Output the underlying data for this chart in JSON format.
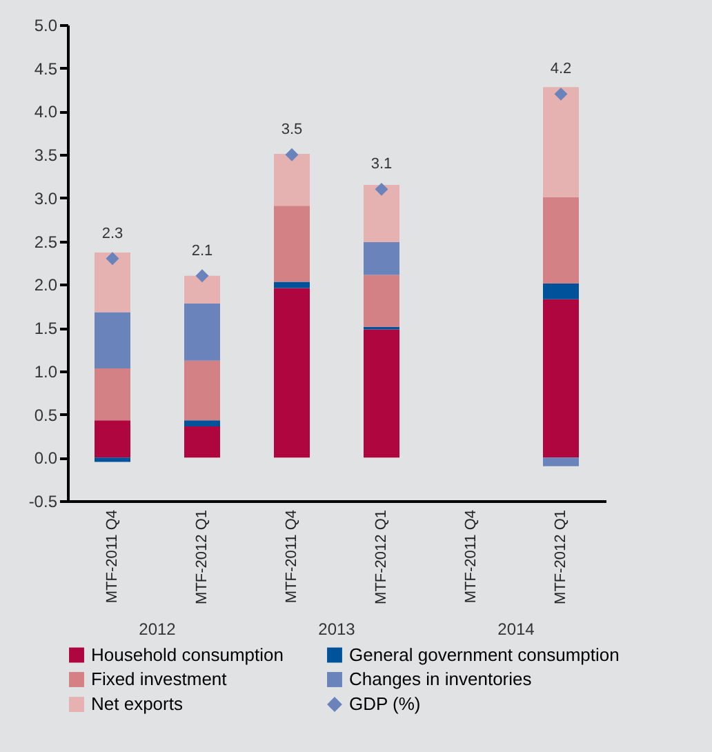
{
  "chart_data": {
    "type": "bar",
    "stacked": true,
    "categories": [
      "MTF-2011 Q4",
      "MTF-2012 Q1",
      "MTF-2011 Q4",
      "MTF-2012 Q1",
      "MTF-2011 Q4",
      "MTF-2012 Q1"
    ],
    "annotations": [
      "2012",
      "2013",
      "2014"
    ],
    "series": [
      {
        "name": "Household consumption",
        "color": "#b0063f",
        "values": [
          0.43,
          0.36,
          1.96,
          1.48,
          null,
          1.83
        ]
      },
      {
        "name": "General government consumption",
        "color": "#00529b",
        "values": [
          -0.05,
          0.07,
          0.07,
          0.03,
          null,
          0.18
        ]
      },
      {
        "name": "Fixed investment",
        "color": "#d48185",
        "values": [
          0.6,
          0.69,
          0.88,
          0.6,
          null,
          1.0
        ]
      },
      {
        "name": "Changes in inventories",
        "color": "#6a84bb",
        "values": [
          0.65,
          0.66,
          0,
          0.38,
          null,
          -0.1
        ]
      },
      {
        "name": "Net exports",
        "color": "#e5b1b1",
        "values": [
          0.69,
          0.32,
          0.6,
          0.66,
          null,
          1.27
        ]
      },
      {
        "name": "GDP (%)",
        "type": "scatter",
        "color": "#6a84bb",
        "marker": "diamond",
        "values": [
          2.3,
          2.1,
          3.5,
          3.1,
          null,
          4.2
        ],
        "value_labels": [
          "2.3",
          "2.1",
          "3.5",
          "3.1",
          null,
          "4.2"
        ]
      }
    ],
    "ylim": [
      -0.5,
      5.0
    ],
    "yticks": [
      -0.5,
      {
        "value": 0,
        "label": "0.0"
      },
      0.5,
      {
        "value": 1,
        "label": "1.0"
      },
      1.5,
      {
        "value": 2,
        "label": "2.0"
      },
      2.5,
      {
        "value": 3,
        "label": "3.0"
      },
      3.5,
      {
        "value": 4,
        "label": "4.0"
      },
      4.5,
      {
        "value": 5,
        "label": "5.0"
      }
    ],
    "grid": false,
    "legend": "bottom"
  }
}
